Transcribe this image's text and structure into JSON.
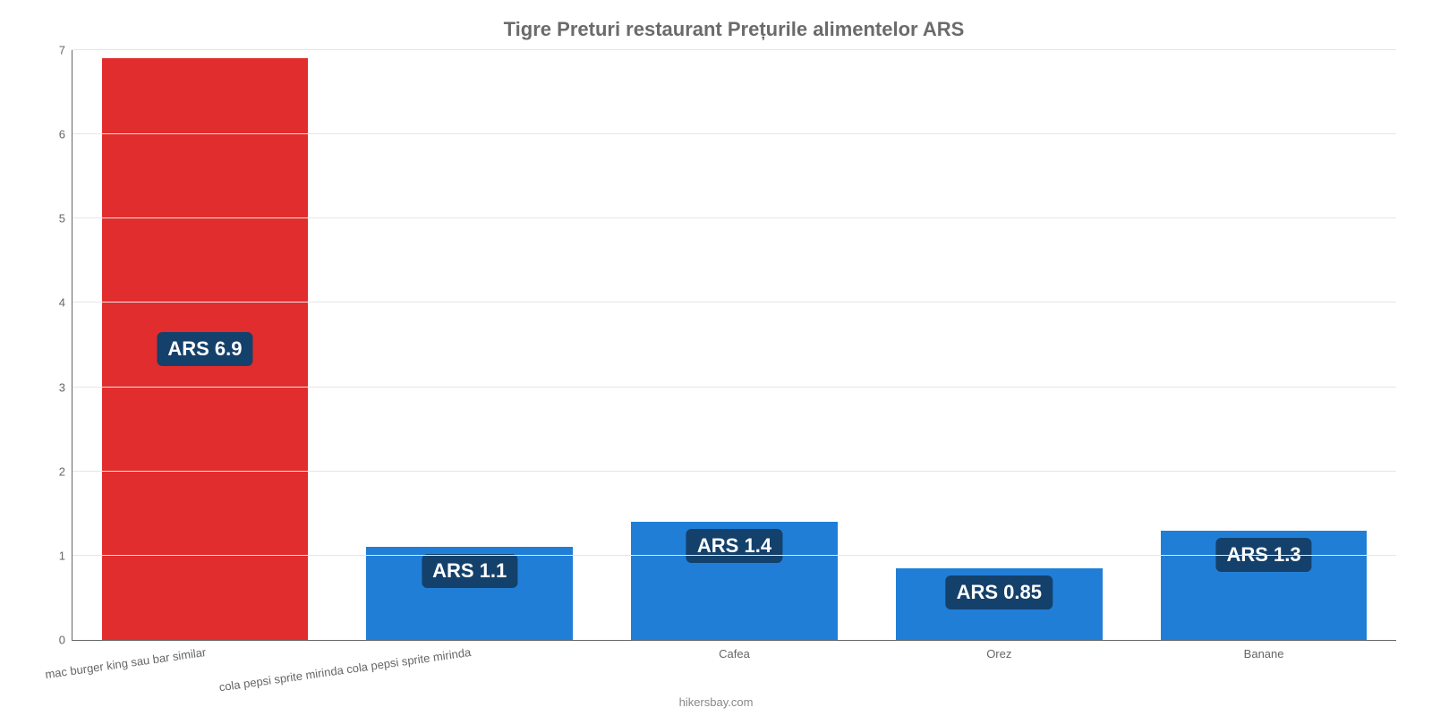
{
  "chart": {
    "type": "bar",
    "title": "Tigre Preturi restaurant Prețurile alimentelor ARS",
    "title_fontsize": 22,
    "title_color": "#6b6b6b",
    "credit": "hikersbay.com",
    "background_color": "#ffffff",
    "grid_color": "#e6e6e6",
    "axis_color": "#666666",
    "ylim": [
      0,
      7
    ],
    "ytick_step": 1,
    "bar_width_pct": 78,
    "label_fontsize": 13,
    "label_color": "#666666",
    "value_badge": {
      "bg": "#14416b",
      "color": "#ffffff",
      "fontsize": 22,
      "prefix": "ARS "
    },
    "categories": [
      {
        "label": "mac burger king sau bar similar",
        "rotated": true
      },
      {
        "label": "cola pepsi sprite mirinda cola pepsi sprite mirinda",
        "rotated": true
      },
      {
        "label": "Cafea",
        "rotated": false
      },
      {
        "label": "Orez",
        "rotated": false
      },
      {
        "label": "Banane",
        "rotated": false
      }
    ],
    "values": [
      6.9,
      1.1,
      1.4,
      0.85,
      1.3
    ],
    "value_display": [
      "6.9",
      "1.1",
      "1.4",
      "0.85",
      "1.3"
    ],
    "bar_colors": [
      "#e12d2d",
      "#217ed6",
      "#217ed6",
      "#217ed6",
      "#217ed6"
    ]
  }
}
